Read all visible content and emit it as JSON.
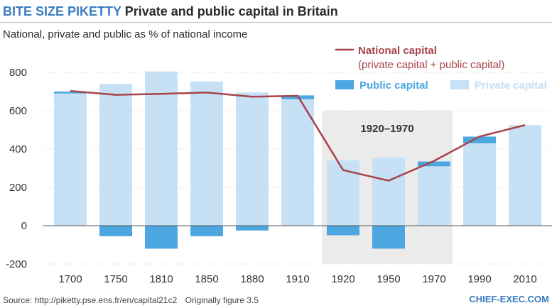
{
  "header": {
    "brand": "BITE SIZE PIKETTY",
    "title": "Private and public capital in Britain"
  },
  "subtitle": "National, private and public as % of national income",
  "footer": {
    "source": "Source: http://piketty.pse.ens.fr/en/capital21c2",
    "note": "Originally figure 3.5",
    "brand": "CHIEF-EXEC.COM"
  },
  "colors": {
    "private": "#c6e0f5",
    "public": "#4ca6df",
    "national": "#a8434b",
    "period_band": "#ebebeb",
    "brand_blue": "#3a7cc0"
  },
  "chart_data": {
    "type": "bar",
    "title": "Private and public capital in Britain",
    "xlabel": "",
    "ylabel": "National, private and public as % of national income",
    "ylim": [
      -200,
      800
    ],
    "yticks": [
      -200,
      0,
      200,
      400,
      600,
      800
    ],
    "categories": [
      "1700",
      "1750",
      "1810",
      "1850",
      "1880",
      "1910",
      "1920",
      "1950",
      "1970",
      "1990",
      "2010"
    ],
    "series": [
      {
        "name": "Private capital",
        "type": "bar",
        "values": [
          690,
          740,
          805,
          752,
          695,
          660,
          340,
          355,
          310,
          430,
          525
        ]
      },
      {
        "name": "Public capital",
        "type": "bar",
        "values": [
          10,
          -55,
          -120,
          -55,
          -25,
          20,
          -50,
          -120,
          25,
          35,
          0
        ]
      },
      {
        "name": "National capital",
        "type": "line",
        "values": [
          703,
          683,
          688,
          695,
          673,
          678,
          290,
          235,
          338,
          465,
          525
        ]
      }
    ],
    "legend": {
      "national": "National capital",
      "national_sub": "(private capital + public capital)",
      "public": "Public capital",
      "private": "Private capital",
      "position": "top-right"
    },
    "annotations": [
      {
        "label": "1920–1970",
        "from_category": "1920",
        "to_category": "1970"
      }
    ]
  }
}
